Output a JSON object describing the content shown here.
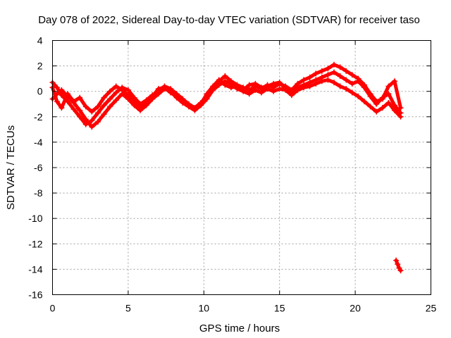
{
  "chart_data": {
    "type": "scatter",
    "title": "Day 078 of 2022, Sidereal Day-to-day VTEC variation (SDTVAR) for receiver taso",
    "xlabel": "GPS time / hours",
    "ylabel": "SDTVAR / TECUs",
    "xlim": [
      0,
      25
    ],
    "ylim": [
      -16,
      4
    ],
    "xticks": [
      0,
      5,
      10,
      15,
      20,
      25
    ],
    "yticks": [
      4,
      2,
      0,
      -2,
      -4,
      -6,
      -8,
      -10,
      -12,
      -14,
      -16
    ],
    "grid": true,
    "series_color": "#ff0000",
    "series": [
      {
        "name": "trace-a",
        "x": [
          0.0,
          0.3,
          0.6,
          1.0,
          1.4,
          1.8,
          2.2,
          2.6,
          3.0,
          3.4,
          3.8,
          4.2,
          4.6,
          5.0,
          5.4,
          5.8,
          6.2,
          6.6,
          7.0,
          7.4,
          7.8,
          8.2,
          8.6,
          9.0,
          9.4,
          9.8,
          10.2,
          10.6,
          11.0,
          11.4,
          11.8,
          12.2,
          12.6,
          13.0,
          13.4,
          13.8,
          14.2,
          14.6,
          15.0,
          15.4,
          15.8,
          16.2,
          16.6,
          17.0,
          17.4,
          17.8,
          18.2,
          18.6,
          19.0,
          19.4,
          19.8,
          20.2,
          20.6,
          21.0,
          21.4,
          21.8,
          22.2,
          22.6,
          23.0
        ],
        "y": [
          0.7,
          0.3,
          -0.3,
          -0.8,
          -1.4,
          -2.0,
          -2.6,
          -2.3,
          -1.7,
          -1.1,
          -0.6,
          -0.1,
          0.3,
          0.1,
          -0.5,
          -1.0,
          -0.7,
          -0.3,
          0.0,
          0.4,
          0.2,
          -0.2,
          -0.6,
          -1.0,
          -1.3,
          -0.9,
          -0.4,
          0.3,
          0.8,
          1.2,
          0.8,
          0.5,
          0.3,
          0.1,
          0.4,
          0.2,
          0.5,
          0.3,
          0.6,
          0.4,
          0.1,
          0.6,
          0.9,
          1.1,
          1.4,
          1.6,
          1.8,
          2.1,
          1.9,
          1.6,
          1.3,
          1.0,
          0.5,
          -0.2,
          -0.8,
          -0.6,
          0.4,
          0.8,
          -1.3
        ]
      },
      {
        "name": "trace-b",
        "x": [
          0.0,
          0.3,
          0.6,
          1.0,
          1.4,
          1.8,
          2.2,
          2.6,
          3.0,
          3.4,
          3.8,
          4.2,
          4.6,
          5.0,
          5.4,
          5.8,
          6.2,
          6.6,
          7.0,
          7.4,
          7.8,
          8.2,
          8.6,
          9.0,
          9.4,
          9.8,
          10.2,
          10.6,
          11.0,
          11.4,
          11.8,
          12.2,
          12.6,
          13.0,
          13.4,
          13.8,
          14.2,
          14.6,
          15.0,
          15.4,
          15.8,
          16.2,
          16.6,
          17.0,
          17.4,
          17.8,
          18.2,
          18.6,
          19.0,
          19.4,
          19.8,
          20.2,
          20.6,
          21.0,
          21.4,
          21.8,
          22.2,
          22.6,
          23.0
        ],
        "y": [
          -0.6,
          -0.2,
          0.1,
          -0.4,
          -0.9,
          -1.5,
          -2.2,
          -2.8,
          -2.4,
          -1.8,
          -1.2,
          -0.7,
          -0.2,
          -0.6,
          -1.1,
          -1.5,
          -1.1,
          -0.6,
          -0.2,
          0.2,
          0.0,
          -0.5,
          -0.9,
          -1.2,
          -1.5,
          -1.1,
          -0.6,
          0.1,
          0.5,
          0.8,
          0.6,
          0.2,
          0.0,
          -0.2,
          0.1,
          -0.1,
          0.2,
          0.0,
          0.2,
          0.1,
          -0.3,
          0.1,
          0.3,
          0.4,
          0.6,
          0.8,
          0.9,
          0.7,
          0.4,
          0.2,
          -0.1,
          -0.4,
          -0.8,
          -1.2,
          -1.6,
          -1.3,
          -0.9,
          -1.5,
          -2.0
        ]
      },
      {
        "name": "trace-c",
        "x": [
          0.0,
          0.3,
          0.6,
          1.0,
          1.4,
          1.8,
          2.2,
          2.6,
          3.0,
          3.4,
          3.8,
          4.2,
          4.6,
          5.0,
          5.4,
          5.8,
          6.2,
          6.6,
          7.0,
          7.4,
          7.8,
          8.2,
          8.6,
          9.0,
          9.4,
          9.8,
          10.2,
          10.6,
          11.0,
          11.4,
          11.8,
          12.2,
          12.6,
          13.0,
          13.4,
          13.8,
          14.2,
          14.6,
          15.0,
          15.4,
          15.8,
          16.2,
          16.6,
          17.0,
          17.4,
          17.8,
          18.2,
          18.6,
          19.0,
          19.4,
          19.8,
          20.2,
          20.6,
          21.0,
          21.4,
          21.8,
          22.2,
          22.6,
          23.0
        ],
        "y": [
          0.3,
          -0.8,
          -1.3,
          -0.2,
          -0.8,
          -0.5,
          -1.2,
          -1.6,
          -1.2,
          -0.5,
          0.0,
          0.4,
          0.1,
          -0.3,
          -0.8,
          -1.2,
          -0.8,
          -0.4,
          0.2,
          0.3,
          -0.1,
          -0.4,
          -0.8,
          -1.1,
          -1.4,
          -1.0,
          -0.2,
          0.4,
          0.9,
          0.5,
          0.3,
          0.4,
          0.1,
          0.5,
          0.6,
          0.3,
          0.4,
          0.6,
          0.7,
          0.2,
          0.0,
          0.3,
          0.5,
          0.7,
          0.9,
          1.1,
          1.3,
          1.5,
          1.2,
          0.9,
          0.6,
          0.8,
          0.3,
          -0.4,
          -1.0,
          -0.5,
          -0.2,
          -1.1,
          -1.7
        ]
      },
      {
        "name": "trace-d",
        "x": [
          22.7,
          22.8,
          22.9,
          23.0
        ],
        "y": [
          -13.3,
          -13.6,
          -13.9,
          -14.1
        ]
      }
    ]
  }
}
